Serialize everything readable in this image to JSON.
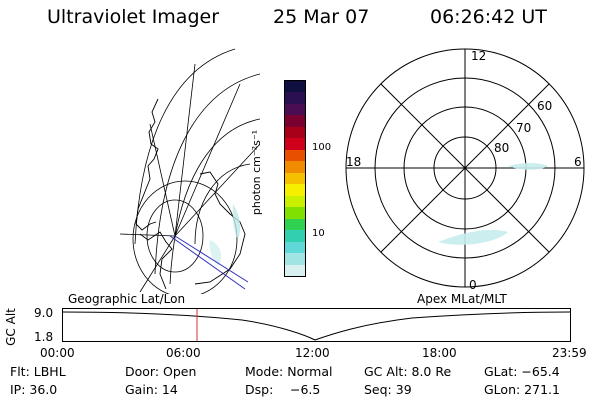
{
  "header": {
    "app_title": "Ultraviolet Imager",
    "date": "25 Mar 07",
    "time": "06:26:42 UT"
  },
  "colorbar": {
    "unit_label": "photon cm⁻²s⁻¹",
    "ticks": [
      "100",
      "10"
    ],
    "colors": [
      "#101040",
      "#2a1050",
      "#4a0c52",
      "#7a0030",
      "#a80018",
      "#d0001a",
      "#e85000",
      "#f08c00",
      "#f5c000",
      "#f5f000",
      "#c8f000",
      "#80e000",
      "#30d050",
      "#30d0b0",
      "#60d8d8",
      "#a0e4e4",
      "#d8f0f0"
    ]
  },
  "polar_map": {
    "mlt_labels": {
      "top": "12",
      "left": "18",
      "right": "6",
      "bottom": "0"
    },
    "lat_labels": [
      "60",
      "70",
      "80"
    ]
  },
  "timeline": {
    "y_axis_label": "GC Alt",
    "y_ticks": [
      "9.0",
      "1.8"
    ],
    "left_title": "Geographic Lat/Lon",
    "right_title": "Apex MLat/MLT",
    "x_ticks": [
      "00:00",
      "06:00",
      "12:00",
      "18:00",
      "23:59"
    ],
    "marker_color": "#d03030"
  },
  "info": {
    "row1": {
      "filter": "Flt: LBHL",
      "door": "Door: Open",
      "mode": "Mode: Normal",
      "gc_alt": "GC Alt: 8.0 Re",
      "glat": "GLat: −65.4"
    },
    "row2": {
      "ip": "IP: 36.0",
      "gain": "Gain: 14",
      "dsp_label": "Dsp:",
      "dsp_value": "−6.5",
      "seq": "Seq: 39",
      "glon": "GLon: 271.1"
    }
  }
}
